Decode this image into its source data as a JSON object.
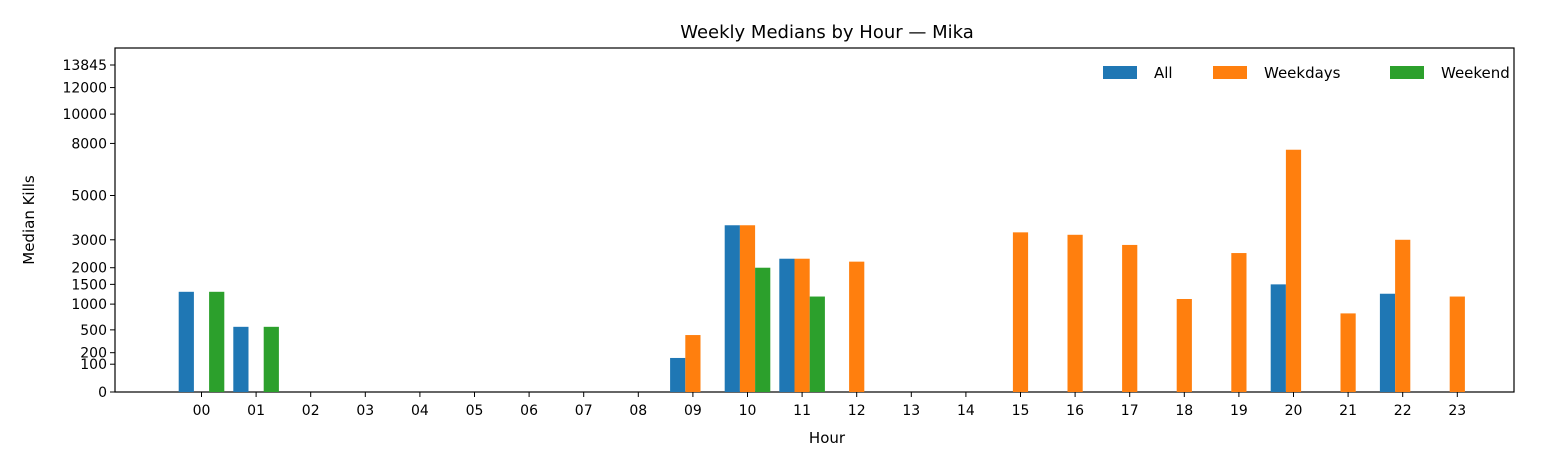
{
  "chart_data": {
    "type": "bar",
    "title": "Weekly Medians by Hour — Mika",
    "xlabel": "Hour",
    "ylabel": "Median Kills",
    "categories": [
      "00",
      "01",
      "02",
      "03",
      "04",
      "05",
      "06",
      "07",
      "08",
      "09",
      "10",
      "11",
      "12",
      "13",
      "14",
      "15",
      "16",
      "17",
      "18",
      "19",
      "20",
      "21",
      "22",
      "23"
    ],
    "series": [
      {
        "name": "All",
        "color": "#1f77b4",
        "values": [
          1300,
          550,
          0,
          0,
          0,
          0,
          0,
          0,
          0,
          150,
          3600,
          2300,
          0,
          0,
          0,
          0,
          0,
          0,
          0,
          0,
          1500,
          0,
          1250,
          0
        ]
      },
      {
        "name": "Weekdays",
        "color": "#ff7f0e",
        "values": [
          0,
          0,
          0,
          0,
          0,
          0,
          0,
          0,
          0,
          420,
          3600,
          2300,
          2200,
          0,
          0,
          3300,
          3200,
          2800,
          1120,
          2500,
          7600,
          800,
          3000,
          1180
        ]
      },
      {
        "name": "Weekend",
        "color": "#2ca02c",
        "values": [
          1300,
          550,
          0,
          0,
          0,
          0,
          0,
          0,
          0,
          0,
          2000,
          1180,
          0,
          0,
          0,
          0,
          0,
          0,
          0,
          0,
          0,
          0,
          0,
          0
        ]
      }
    ],
    "ytick_labels": [
      "0",
      "100",
      "200",
      "500",
      "1000",
      "1500",
      "2000",
      "3000",
      "5000",
      "8000",
      "10000",
      "12000",
      "13845"
    ],
    "ytick_values": [
      0,
      100,
      200,
      500,
      1000,
      1500,
      2000,
      3000,
      5000,
      8000,
      10000,
      12000,
      13845
    ],
    "ylim": [
      0,
      13845
    ],
    "y_scale": "sqrt",
    "legend_position": "top-right",
    "grid": false
  }
}
